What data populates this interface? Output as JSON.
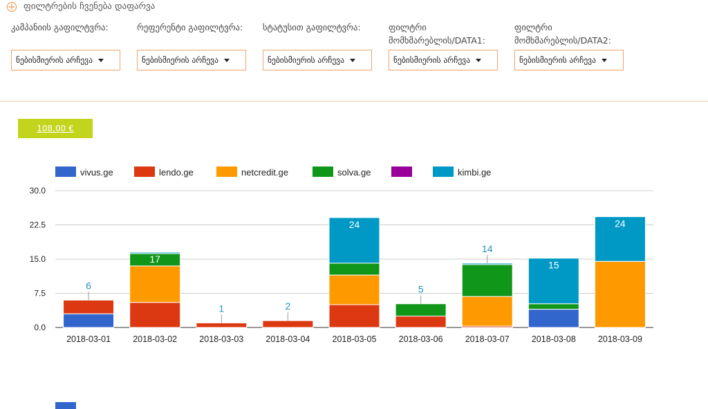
{
  "toggle": {
    "label": "ფილტრების ჩვენება დაფარვა"
  },
  "filters": [
    {
      "label": "კამპანიის გაფილტვრა:",
      "value": "ნებისმიერის არჩევა"
    },
    {
      "label": "რეფერენტი გაფილტვრა:",
      "value": "ნებისმიერის არჩევა"
    },
    {
      "label": "სტატუსით გაფილტვრა:",
      "value": "ნებისმიერის არჩევა"
    },
    {
      "label": "ფილტრი მომხმარებლის/DATA1:",
      "value": "ნებისმიერის არჩევა"
    },
    {
      "label": "ფილტრი მომხმარებლის/DATA2:",
      "value": "ნებისმიერის არჩევა"
    }
  ],
  "total": {
    "label": "108,00 €"
  },
  "colors": {
    "accent": "#f08c3c",
    "total_bg": "#c3d41c"
  },
  "chart_data": {
    "type": "bar",
    "stacked": true,
    "categories": [
      "2018-03-01",
      "2018-03-02",
      "2018-03-03",
      "2018-03-04",
      "2018-03-05",
      "2018-03-06",
      "2018-03-07",
      "2018-03-08",
      "2018-03-09"
    ],
    "series": [
      {
        "name": "vivus.ge",
        "color": "#3366cc",
        "values": [
          3,
          0,
          0,
          0,
          0,
          0,
          0,
          4,
          0
        ]
      },
      {
        "name": "lendo.ge",
        "color": "#dc3912",
        "values": [
          3,
          5.5,
          1,
          1.5,
          5,
          2.5,
          0.3,
          0,
          0
        ]
      },
      {
        "name": "netcredit.ge",
        "color": "#ff9900",
        "values": [
          0,
          8,
          0,
          0,
          6.5,
          0,
          6.5,
          0,
          14.5
        ]
      },
      {
        "name": "solva.ge",
        "color": "#109618",
        "values": [
          0,
          2.7,
          0,
          0,
          2.6,
          2.7,
          7,
          1.2,
          0
        ]
      },
      {
        "name": "",
        "color": "#990099",
        "values": [
          0,
          0,
          0,
          0,
          0,
          0,
          0,
          0,
          0
        ]
      },
      {
        "name": "kimbi.ge",
        "color": "#0099c6",
        "values": [
          0,
          0.3,
          0,
          0,
          10,
          0,
          0.3,
          10,
          9.8
        ]
      }
    ],
    "totals": [
      "6",
      "17",
      "1",
      "2",
      "24",
      "5",
      "14",
      "15",
      "24"
    ],
    "yticks": [
      "0.0",
      "7.5",
      "15.0",
      "22.5",
      "30.0"
    ],
    "ylim": [
      0,
      30
    ],
    "legend_position": "top",
    "grid": true
  }
}
